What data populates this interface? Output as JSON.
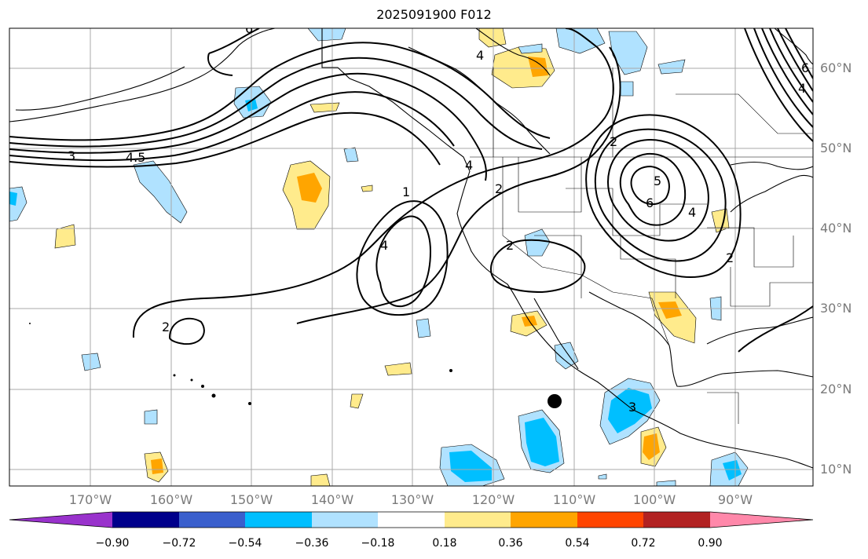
{
  "title": "2025091900 F012",
  "lat_labels": [
    "60°N",
    "50°N",
    "40°N",
    "30°N",
    "20°N",
    "10°N"
  ],
  "lon_labels": [
    "170°W",
    "160°W",
    "150°W",
    "140°W",
    "130°W",
    "120°W",
    "110°W",
    "100°W",
    "90°W"
  ],
  "colorbar": {
    "colors": [
      "#9932cc",
      "#00008b",
      "#3a5fcd",
      "#00bfff",
      "#b0e2ff",
      "#ffffff",
      "#ffeb8c",
      "#ffa500",
      "#ff4500",
      "#b22222",
      "#ff88aa"
    ],
    "labels": [
      "−0.90",
      "−0.72",
      "−0.54",
      "−0.36",
      "−0.18",
      "0.18",
      "0.36",
      "0.54",
      "0.72",
      "0.90"
    ]
  },
  "contour_labels": [
    "6",
    "4",
    "4.5",
    "3",
    "1",
    "2",
    "4",
    "2",
    "2",
    "2",
    "6",
    "5",
    "2",
    "4",
    "6",
    "4",
    "3",
    "4"
  ],
  "colors": {
    "light_blue": "#b0e2ff",
    "blue": "#00bfff",
    "yellow": "#ffeb8c",
    "orange": "#ffa500",
    "grid": "#a8a8a8"
  }
}
